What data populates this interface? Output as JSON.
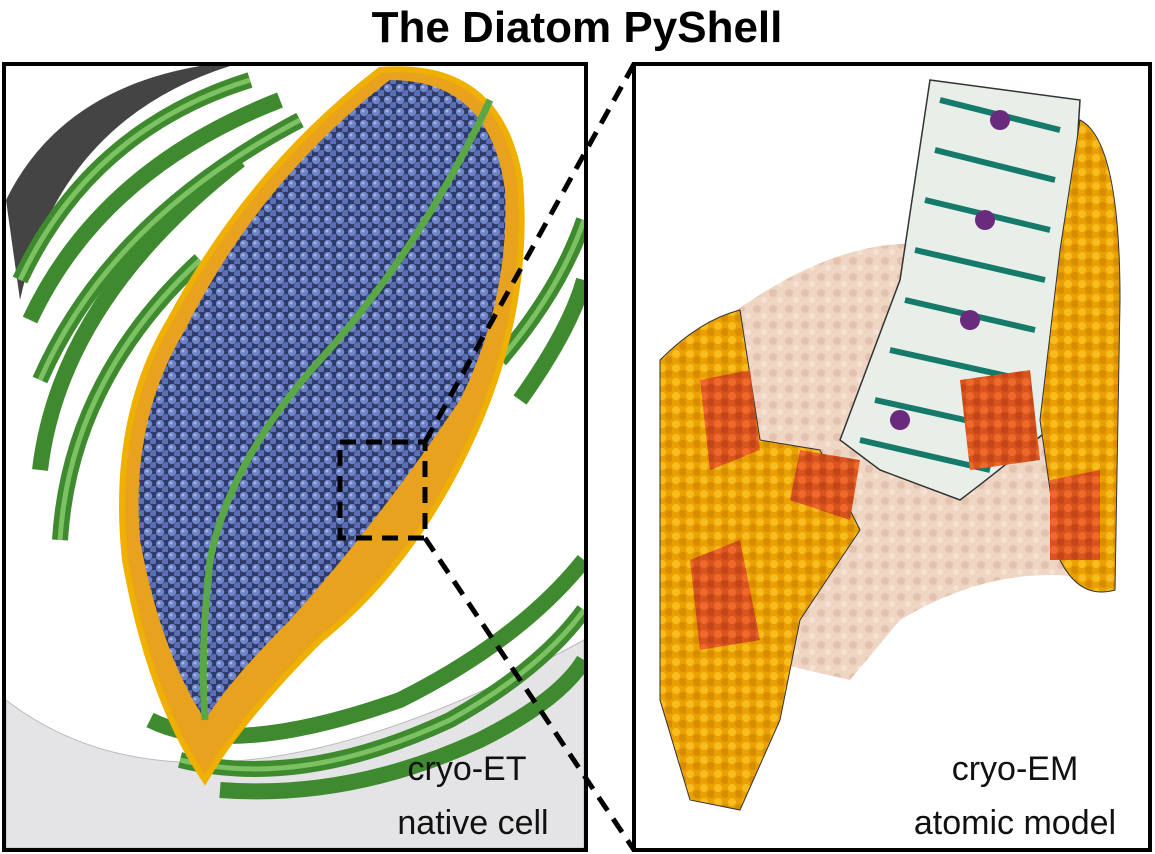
{
  "title": "The Diatom PyShell",
  "left_panel": {
    "label": [
      "cryo-ET",
      "native cell"
    ]
  },
  "right_panel": {
    "label": [
      "cryo-EM",
      "atomic model"
    ]
  }
}
